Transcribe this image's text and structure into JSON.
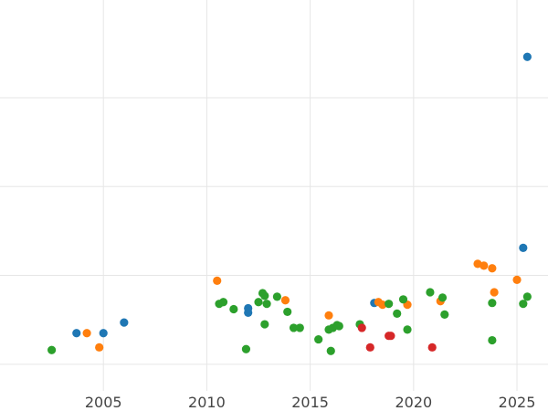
{
  "chart_data": {
    "type": "scatter",
    "title": "",
    "xlabel": "",
    "ylabel": "",
    "xlim": [
      2000.0,
      2026.5
    ],
    "ylim": [
      0,
      440
    ],
    "x_ticks": [
      2005,
      2010,
      2015,
      2020,
      2025
    ],
    "y_gridlines": [
      30,
      130,
      230,
      330
    ],
    "grid": true,
    "legend": "none",
    "series": [
      {
        "color": "#1f77b4",
        "points": [
          {
            "x": 2003.7,
            "y": 65
          },
          {
            "x": 2005.0,
            "y": 65
          },
          {
            "x": 2006.0,
            "y": 77
          },
          {
            "x": 2012.0,
            "y": 88
          },
          {
            "x": 2012.0,
            "y": 93
          },
          {
            "x": 2018.1,
            "y": 99
          },
          {
            "x": 2025.3,
            "y": 161
          },
          {
            "x": 2025.5,
            "y": 376
          }
        ]
      },
      {
        "color": "#ff7f0e",
        "points": [
          {
            "x": 2004.2,
            "y": 65
          },
          {
            "x": 2004.8,
            "y": 49
          },
          {
            "x": 2010.5,
            "y": 124
          },
          {
            "x": 2013.8,
            "y": 102
          },
          {
            "x": 2015.9,
            "y": 85
          },
          {
            "x": 2018.3,
            "y": 100
          },
          {
            "x": 2018.5,
            "y": 97
          },
          {
            "x": 2019.7,
            "y": 97
          },
          {
            "x": 2021.3,
            "y": 101
          },
          {
            "x": 2023.1,
            "y": 143
          },
          {
            "x": 2023.4,
            "y": 141
          },
          {
            "x": 2023.8,
            "y": 138
          },
          {
            "x": 2023.9,
            "y": 111
          },
          {
            "x": 2025.0,
            "y": 125
          }
        ]
      },
      {
        "color": "#2ca02c",
        "points": [
          {
            "x": 2002.5,
            "y": 46
          },
          {
            "x": 2010.6,
            "y": 98
          },
          {
            "x": 2010.8,
            "y": 100
          },
          {
            "x": 2011.3,
            "y": 92
          },
          {
            "x": 2011.9,
            "y": 47
          },
          {
            "x": 2012.5,
            "y": 100
          },
          {
            "x": 2012.7,
            "y": 110
          },
          {
            "x": 2012.8,
            "y": 107
          },
          {
            "x": 2012.8,
            "y": 75
          },
          {
            "x": 2012.9,
            "y": 98
          },
          {
            "x": 2013.4,
            "y": 106
          },
          {
            "x": 2013.9,
            "y": 89
          },
          {
            "x": 2014.2,
            "y": 71
          },
          {
            "x": 2014.5,
            "y": 71
          },
          {
            "x": 2015.4,
            "y": 58
          },
          {
            "x": 2015.9,
            "y": 69
          },
          {
            "x": 2016.0,
            "y": 45
          },
          {
            "x": 2016.1,
            "y": 71
          },
          {
            "x": 2016.3,
            "y": 74
          },
          {
            "x": 2016.4,
            "y": 73
          },
          {
            "x": 2017.4,
            "y": 75
          },
          {
            "x": 2018.8,
            "y": 98
          },
          {
            "x": 2019.2,
            "y": 87
          },
          {
            "x": 2019.5,
            "y": 103
          },
          {
            "x": 2019.7,
            "y": 69
          },
          {
            "x": 2020.8,
            "y": 111
          },
          {
            "x": 2021.4,
            "y": 105
          },
          {
            "x": 2021.5,
            "y": 86
          },
          {
            "x": 2023.8,
            "y": 99
          },
          {
            "x": 2023.8,
            "y": 57
          },
          {
            "x": 2025.3,
            "y": 98
          },
          {
            "x": 2025.5,
            "y": 106
          }
        ]
      },
      {
        "color": "#d62728",
        "points": [
          {
            "x": 2017.5,
            "y": 71
          },
          {
            "x": 2017.9,
            "y": 49
          },
          {
            "x": 2018.8,
            "y": 62
          },
          {
            "x": 2018.9,
            "y": 62
          },
          {
            "x": 2020.9,
            "y": 49
          }
        ]
      }
    ]
  }
}
